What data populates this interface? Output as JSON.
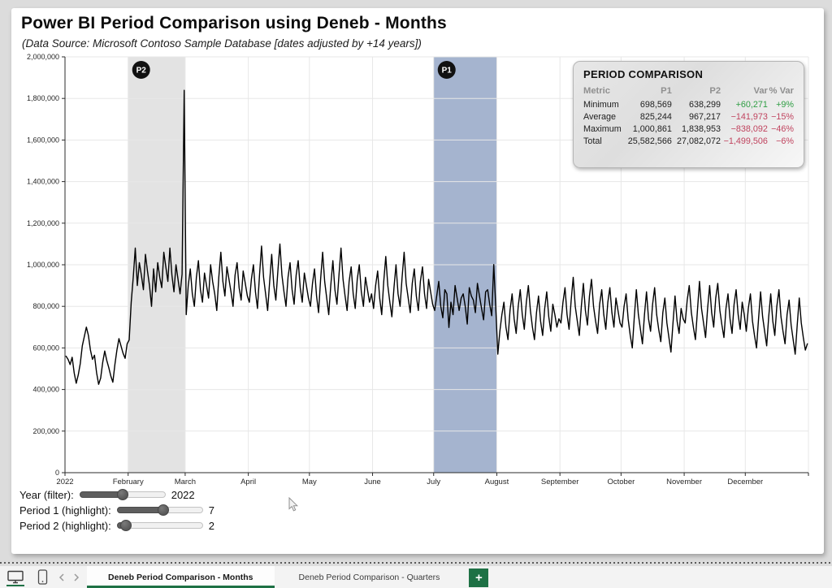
{
  "title": "Power BI Period Comparison using Deneb - Months",
  "subtitle": "(Data Source: Microsoft Contoso Sample Database [dates adjusted by +14 years])",
  "colors": {
    "line": "#000000",
    "band_p1": "#a5b4cf",
    "band_p2": "#e3e3e3",
    "grid": "#e7e7e7",
    "axis": "#2b2b2b",
    "positive": "#2f9e44",
    "negative": "#c0445f",
    "accent_green": "#1e7145",
    "badge": "#111111"
  },
  "comparison_table": {
    "title": "PERIOD COMPARISON",
    "columns": [
      "Metric",
      "P1",
      "P2",
      "Var",
      "% Var"
    ],
    "rows": [
      {
        "metric": "Minimum",
        "p1": "698,569",
        "p2": "638,299",
        "var": "+60,271",
        "pct_var": "+9%",
        "trend": "positive"
      },
      {
        "metric": "Average",
        "p1": "825,244",
        "p2": "967,217",
        "var": "−141,973",
        "pct_var": "−15%",
        "trend": "negative"
      },
      {
        "metric": "Maximum",
        "p1": "1,000,861",
        "p2": "1,838,953",
        "var": "−838,092",
        "pct_var": "−46%",
        "trend": "negative"
      },
      {
        "metric": "Total",
        "p1": "25,582,566",
        "p2": "27,082,072",
        "var": "−1,499,506",
        "pct_var": "−6%",
        "trend": "negative"
      }
    ]
  },
  "sliders": [
    {
      "name": "year-filter",
      "label": "Year (filter):",
      "value": "2022",
      "percent": 50
    },
    {
      "name": "period-1-highlight",
      "label": "Period 1 (highlight):",
      "value": "7",
      "percent": 54
    },
    {
      "name": "period-2-highlight",
      "label": "Period 2 (highlight):",
      "value": "2",
      "percent": 10
    }
  ],
  "footer": {
    "tabs": [
      {
        "label": "Deneb Period Comparison - Months",
        "active": true
      },
      {
        "label": "Deneb Period Comparison - Quarters",
        "active": false
      }
    ],
    "new_page_label": "+"
  },
  "chart_data": {
    "type": "line",
    "title": "",
    "xlabel": "",
    "ylabel": "",
    "x_unit": "day of 2022",
    "ylim": [
      0,
      2000000
    ],
    "y_tick_labels": [
      "0",
      "200,000",
      "400,000",
      "600,000",
      "800,000",
      "1,000,000",
      "1,200,000",
      "1,400,000",
      "1,600,000",
      "1,800,000",
      "2,000,000"
    ],
    "month_ticks": [
      {
        "label": "2022",
        "day": 0
      },
      {
        "label": "February",
        "day": 31
      },
      {
        "label": "March",
        "day": 59
      },
      {
        "label": "April",
        "day": 90
      },
      {
        "label": "May",
        "day": 120
      },
      {
        "label": "June",
        "day": 151
      },
      {
        "label": "July",
        "day": 181
      },
      {
        "label": "August",
        "day": 212
      },
      {
        "label": "September",
        "day": 243
      },
      {
        "label": "October",
        "day": 273
      },
      {
        "label": "November",
        "day": 304
      },
      {
        "label": "December",
        "day": 334
      }
    ],
    "bands": [
      {
        "label": "P2",
        "start_day": 31,
        "end_day": 59,
        "color": "#e3e3e3"
      },
      {
        "label": "P1",
        "start_day": 181,
        "end_day": 212,
        "color": "#a5b4cf"
      }
    ],
    "values": [
      560000,
      545000,
      520000,
      555000,
      480000,
      430000,
      470000,
      525000,
      610000,
      655000,
      700000,
      660000,
      590000,
      545000,
      565000,
      480000,
      425000,
      455000,
      530000,
      585000,
      540000,
      505000,
      465000,
      435000,
      520000,
      590000,
      645000,
      610000,
      575000,
      550000,
      620000,
      638299,
      820000,
      940000,
      1080000,
      900000,
      1010000,
      950000,
      880000,
      1050000,
      970000,
      900000,
      800000,
      980000,
      870000,
      1010000,
      940000,
      890000,
      1060000,
      990000,
      920000,
      1080000,
      950000,
      870000,
      1000000,
      930000,
      860000,
      954820,
      1838953,
      760000,
      900000,
      980000,
      860000,
      800000,
      940000,
      1020000,
      880000,
      820000,
      960000,
      900000,
      840000,
      1000000,
      920000,
      860000,
      780000,
      940000,
      1060000,
      920000,
      850000,
      990000,
      930000,
      870000,
      800000,
      950000,
      1010000,
      890000,
      830000,
      970000,
      910000,
      850000,
      820000,
      930000,
      1000000,
      870000,
      790000,
      950000,
      1090000,
      940000,
      860000,
      780000,
      920000,
      1050000,
      900000,
      830000,
      970000,
      1100000,
      950000,
      870000,
      800000,
      940000,
      1010000,
      880000,
      810000,
      950000,
      1020000,
      890000,
      820000,
      960000,
      900000,
      840000,
      800000,
      910000,
      980000,
      850000,
      770000,
      930000,
      1060000,
      920000,
      840000,
      760000,
      900000,
      1020000,
      880000,
      810000,
      950000,
      1080000,
      930000,
      850000,
      780000,
      920000,
      990000,
      860000,
      790000,
      930000,
      1000000,
      870000,
      800000,
      940000,
      880000,
      820000,
      860000,
      790000,
      900000,
      970000,
      840000,
      760000,
      920000,
      1040000,
      900000,
      820000,
      750000,
      890000,
      1000000,
      860000,
      800000,
      940000,
      1060000,
      910000,
      840000,
      770000,
      910000,
      980000,
      850000,
      780000,
      920000,
      990000,
      860000,
      790000,
      930000,
      870000,
      810000,
      780000,
      850000,
      920000,
      800000,
      745000,
      880000,
      860000,
      698569,
      820000,
      760000,
      900000,
      840000,
      780000,
      840000,
      860000,
      800000,
      715000,
      890000,
      850000,
      830000,
      770000,
      910000,
      850000,
      790000,
      735000,
      870000,
      880000,
      810000,
      755000,
      1000861,
      793136,
      570000,
      680000,
      760000,
      820000,
      700000,
      640000,
      780000,
      860000,
      740000,
      670000,
      800000,
      880000,
      760000,
      690000,
      820000,
      900000,
      780000,
      700000,
      640000,
      770000,
      850000,
      730000,
      660000,
      790000,
      870000,
      750000,
      680000,
      810000,
      760000,
      700000,
      740000,
      720000,
      820000,
      890000,
      760000,
      690000,
      830000,
      940000,
      800000,
      730000,
      660000,
      800000,
      910000,
      780000,
      710000,
      850000,
      930000,
      800000,
      730000,
      670000,
      810000,
      880000,
      760000,
      690000,
      820000,
      890000,
      770000,
      700000,
      840000,
      780000,
      720000,
      700000,
      800000,
      860000,
      740000,
      660000,
      600000,
      750000,
      880000,
      760000,
      690000,
      620000,
      760000,
      870000,
      740000,
      680000,
      810000,
      890000,
      760000,
      690000,
      630000,
      770000,
      840000,
      720000,
      650000,
      580000,
      720000,
      850000,
      730000,
      670000,
      790000,
      740000,
      720000,
      830000,
      900000,
      770000,
      700000,
      640000,
      780000,
      920000,
      790000,
      720000,
      650000,
      790000,
      900000,
      770000,
      700000,
      840000,
      910000,
      780000,
      710000,
      650000,
      790000,
      860000,
      740000,
      670000,
      810000,
      880000,
      760000,
      690000,
      820000,
      760000,
      680000,
      790000,
      860000,
      730000,
      660000,
      600000,
      740000,
      870000,
      750000,
      680000,
      610000,
      750000,
      860000,
      730000,
      660000,
      800000,
      880000,
      750000,
      680000,
      620000,
      760000,
      830000,
      710000,
      640000,
      570000,
      710000,
      840000,
      720000,
      650000,
      590000,
      620000
    ]
  }
}
